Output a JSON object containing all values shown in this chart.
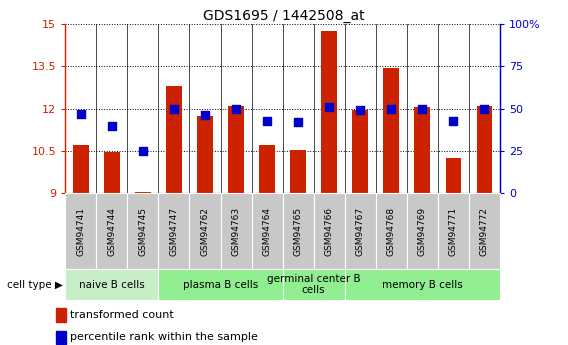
{
  "title": "GDS1695 / 1442508_at",
  "samples": [
    "GSM94741",
    "GSM94744",
    "GSM94745",
    "GSM94747",
    "GSM94762",
    "GSM94763",
    "GSM94764",
    "GSM94765",
    "GSM94766",
    "GSM94767",
    "GSM94768",
    "GSM94769",
    "GSM94771",
    "GSM94772"
  ],
  "transformed_count": [
    10.7,
    10.45,
    9.05,
    12.8,
    11.75,
    12.1,
    10.7,
    10.55,
    14.75,
    11.95,
    13.45,
    12.05,
    10.25,
    12.1
  ],
  "percentile_rank": [
    47,
    40,
    25,
    50,
    46,
    50,
    43,
    42,
    51,
    49,
    50,
    50,
    43,
    50
  ],
  "ylim_left": [
    9,
    15
  ],
  "ylim_right": [
    0,
    100
  ],
  "yticks_left": [
    9,
    10.5,
    12,
    13.5,
    15
  ],
  "yticks_right": [
    0,
    25,
    50,
    75,
    100
  ],
  "ytick_labels_left": [
    "9",
    "10.5",
    "12",
    "13.5",
    "15"
  ],
  "ytick_labels_right": [
    "0",
    "25",
    "50",
    "75",
    "100%"
  ],
  "cell_groups": [
    {
      "label": "naive B cells",
      "start": 0,
      "end": 2,
      "color": "#c8eec8"
    },
    {
      "label": "plasma B cells",
      "start": 3,
      "end": 6,
      "color": "#90ee90"
    },
    {
      "label": "germinal center B\ncells",
      "start": 7,
      "end": 8,
      "color": "#90ee90"
    },
    {
      "label": "memory B cells",
      "start": 9,
      "end": 13,
      "color": "#90ee90"
    }
  ],
  "bar_color": "#cc2200",
  "dot_color": "#0000cc",
  "bar_width": 0.5,
  "dot_size": 30,
  "legend": [
    {
      "label": "transformed count",
      "color": "#cc2200",
      "marker": "s"
    },
    {
      "label": "percentile rank within the sample",
      "color": "#0000cc",
      "marker": "s"
    }
  ]
}
